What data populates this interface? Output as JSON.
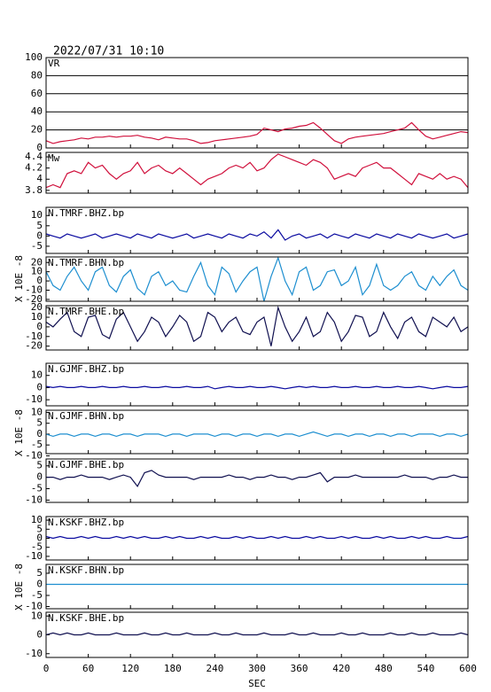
{
  "chart_data": {
    "type": "line",
    "title": "2022/07/31 10:10",
    "xlabel": "SEC",
    "xlim": [
      0,
      600
    ],
    "xticks": [
      0,
      60,
      120,
      180,
      240,
      300,
      360,
      420,
      480,
      540,
      600
    ],
    "y_labels": [
      "X 10E -8",
      "X 10E -8",
      "X 10E -8"
    ],
    "x": [
      0,
      10,
      20,
      30,
      40,
      50,
      60,
      70,
      80,
      90,
      100,
      110,
      120,
      130,
      140,
      150,
      160,
      170,
      180,
      190,
      200,
      210,
      220,
      230,
      240,
      250,
      260,
      270,
      280,
      290,
      300,
      310,
      320,
      330,
      340,
      350,
      360,
      370,
      380,
      390,
      400,
      410,
      420,
      430,
      440,
      450,
      460,
      470,
      480,
      490,
      500,
      510,
      520,
      530,
      540,
      550,
      560,
      570,
      580,
      590,
      600
    ],
    "panels": [
      {
        "name": "VR",
        "color": "#d0103c",
        "grid": true,
        "ylim": [
          0,
          100
        ],
        "yticks": [
          0,
          20,
          40,
          60,
          80,
          100
        ],
        "values": [
          8,
          5,
          7,
          8,
          9,
          11,
          10,
          12,
          12,
          13,
          12,
          13,
          13,
          14,
          12,
          11,
          9,
          12,
          11,
          10,
          10,
          8,
          5,
          6,
          8,
          9,
          10,
          11,
          12,
          13,
          15,
          22,
          20,
          18,
          21,
          22,
          24,
          25,
          28,
          22,
          15,
          8,
          5,
          10,
          12,
          13,
          14,
          15,
          16,
          18,
          20,
          22,
          28,
          20,
          13,
          10,
          12,
          14,
          16,
          18,
          17
        ]
      },
      {
        "name": "Mw",
        "color": "#d0103c",
        "grid": false,
        "ylim": [
          3.75,
          4.48
        ],
        "yticks": [
          3.8,
          4.0,
          4.2,
          4.4
        ],
        "values": [
          3.85,
          3.9,
          3.85,
          4.1,
          4.15,
          4.1,
          4.3,
          4.2,
          4.25,
          4.1,
          4.0,
          4.1,
          4.15,
          4.3,
          4.1,
          4.2,
          4.25,
          4.15,
          4.1,
          4.2,
          4.1,
          4.0,
          3.9,
          4.0,
          4.05,
          4.1,
          4.2,
          4.25,
          4.2,
          4.3,
          4.15,
          4.2,
          4.35,
          4.45,
          4.4,
          4.35,
          4.3,
          4.25,
          4.35,
          4.3,
          4.2,
          4.0,
          4.05,
          4.1,
          4.05,
          4.2,
          4.25,
          4.3,
          4.2,
          4.2,
          4.1,
          4.0,
          3.9,
          4.1,
          4.05,
          4.0,
          4.1,
          4.0,
          4.05,
          4.0,
          3.85
        ]
      },
      {
        "name": "N.TMRF.BHZ.bp",
        "color": "#0a0aa0",
        "grid": false,
        "ylim": [
          -8.5,
          14
        ],
        "yticks": [
          -5,
          0,
          5,
          10
        ],
        "values": [
          1,
          0,
          -1,
          1,
          0,
          -1,
          0,
          1,
          -1,
          0,
          1,
          0,
          -1,
          1,
          0,
          -1,
          1,
          0,
          -1,
          0,
          1,
          -1,
          0,
          1,
          0,
          -1,
          1,
          0,
          -1,
          1,
          0,
          2,
          -1,
          3,
          -2,
          0,
          1,
          -1,
          0,
          1,
          -1,
          1,
          0,
          -1,
          1,
          0,
          -1,
          1,
          0,
          -1,
          1,
          0,
          -1,
          1,
          0,
          -1,
          0,
          1,
          -1,
          0,
          1
        ]
      },
      {
        "name": "N.TMRF.BHN.bp",
        "color": "#1e8fd0",
        "grid": false,
        "ylim": [
          -22,
          26
        ],
        "yticks": [
          -20,
          -10,
          0,
          10,
          20
        ],
        "values": [
          10,
          -5,
          -10,
          5,
          15,
          0,
          -10,
          10,
          15,
          -5,
          -12,
          5,
          12,
          -8,
          -15,
          5,
          10,
          -5,
          0,
          -10,
          -12,
          5,
          20,
          -5,
          -15,
          15,
          8,
          -12,
          0,
          10,
          15,
          -22,
          5,
          25,
          0,
          -15,
          10,
          15,
          -10,
          -5,
          10,
          12,
          -5,
          0,
          15,
          -15,
          -5,
          18,
          -5,
          -10,
          -5,
          5,
          10,
          -5,
          -10,
          5,
          -5,
          5,
          12,
          -5,
          -10
        ]
      },
      {
        "name": "N.TMRF.BHE.bp",
        "color": "#101050",
        "grid": false,
        "ylim": [
          -24,
          22
        ],
        "yticks": [
          -20,
          -10,
          0,
          10,
          20
        ],
        "values": [
          5,
          0,
          8,
          15,
          -5,
          -10,
          10,
          12,
          -8,
          -12,
          8,
          15,
          0,
          -15,
          -5,
          10,
          5,
          -10,
          0,
          12,
          5,
          -15,
          -10,
          15,
          10,
          -5,
          5,
          10,
          -5,
          -8,
          5,
          10,
          -20,
          20,
          0,
          -15,
          -5,
          10,
          -10,
          -5,
          15,
          5,
          -15,
          -5,
          12,
          10,
          -10,
          -5,
          15,
          0,
          -12,
          5,
          10,
          -5,
          -10,
          10,
          5,
          0,
          10,
          -5,
          0
        ]
      },
      {
        "name": "N.GJMF.BHZ.bp",
        "color": "#0a0aa0",
        "grid": false,
        "ylim": [
          -15,
          20
        ],
        "yticks": [
          -10,
          0,
          10
        ],
        "values": [
          1,
          0,
          1,
          0,
          0,
          1,
          0,
          0,
          1,
          0,
          0,
          1,
          0,
          0,
          1,
          0,
          0,
          1,
          0,
          0,
          1,
          0,
          0,
          1,
          -1,
          0,
          1,
          0,
          0,
          1,
          0,
          0,
          1,
          0,
          -1,
          0,
          1,
          0,
          1,
          0,
          0,
          1,
          0,
          0,
          1,
          0,
          0,
          1,
          0,
          0,
          1,
          0,
          0,
          1,
          0,
          -1,
          0,
          1,
          0,
          0,
          1
        ]
      },
      {
        "name": "N.GJMF.BHN.bp",
        "color": "#1e8fd0",
        "grid": false,
        "ylim": [
          -9,
          11
        ],
        "yticks": [
          -10,
          -5,
          0,
          5,
          10
        ],
        "values": [
          0,
          -1,
          0,
          0,
          -1,
          0,
          0,
          -1,
          0,
          0,
          -1,
          0,
          0,
          -1,
          0,
          0,
          0,
          -1,
          0,
          0,
          -1,
          0,
          0,
          0,
          -1,
          0,
          0,
          -1,
          0,
          0,
          -1,
          0,
          0,
          -1,
          0,
          0,
          -1,
          0,
          1,
          0,
          -1,
          0,
          0,
          -1,
          0,
          0,
          -1,
          0,
          0,
          -1,
          0,
          0,
          -1,
          0,
          0,
          0,
          -1,
          0,
          0,
          -1,
          0
        ]
      },
      {
        "name": "N.GJMF.BHE.bp",
        "color": "#101050",
        "grid": false,
        "ylim": [
          -11,
          8
        ],
        "yticks": [
          -10,
          -5,
          0,
          5
        ],
        "values": [
          0,
          0,
          -1,
          0,
          0,
          1,
          0,
          0,
          0,
          -1,
          0,
          1,
          0,
          -4,
          2,
          3,
          1,
          0,
          0,
          0,
          0,
          -1,
          0,
          0,
          0,
          0,
          1,
          0,
          0,
          -1,
          0,
          0,
          1,
          0,
          0,
          -1,
          0,
          0,
          1,
          2,
          -2,
          0,
          0,
          0,
          1,
          0,
          0,
          0,
          0,
          0,
          0,
          1,
          0,
          0,
          0,
          -1,
          0,
          0,
          1,
          0,
          0
        ]
      },
      {
        "name": "N.KSKF.BHZ.bp",
        "color": "#0a0aa0",
        "grid": false,
        "ylim": [
          -12,
          12
        ],
        "yticks": [
          -10,
          -5,
          0,
          5,
          10
        ],
        "values": [
          1,
          0,
          1,
          0,
          0,
          1,
          0,
          1,
          0,
          0,
          1,
          0,
          1,
          0,
          1,
          0,
          0,
          1,
          0,
          1,
          0,
          0,
          1,
          0,
          1,
          0,
          0,
          1,
          0,
          1,
          0,
          0,
          1,
          0,
          1,
          0,
          0,
          1,
          0,
          1,
          0,
          0,
          1,
          0,
          1,
          0,
          0,
          1,
          0,
          1,
          0,
          0,
          1,
          0,
          1,
          0,
          0,
          1,
          0,
          0,
          1
        ]
      },
      {
        "name": "N.KSKF.BHN.bp",
        "color": "#1e8fd0",
        "grid": false,
        "ylim": [
          -11,
          9
        ],
        "yticks": [
          -10,
          -5,
          0,
          5
        ],
        "values": [
          0,
          0,
          0,
          0,
          0,
          0,
          0,
          0,
          0,
          0,
          0,
          0,
          0,
          0,
          0,
          0,
          0,
          0,
          0,
          0,
          0,
          0,
          0,
          0,
          0,
          0,
          0,
          0,
          0,
          0,
          0,
          0,
          0,
          0,
          0,
          0,
          0,
          0,
          0,
          0,
          0,
          0,
          0,
          0,
          0,
          0,
          0,
          0,
          0,
          0,
          0,
          0,
          0,
          0,
          0,
          0,
          0,
          0,
          0,
          0,
          0
        ]
      },
      {
        "name": "N.KSKF.BHE.bp",
        "color": "#101050",
        "grid": false,
        "ylim": [
          -12,
          12
        ],
        "yticks": [
          -10,
          0,
          10
        ],
        "values": [
          0,
          1,
          0,
          1,
          0,
          0,
          1,
          0,
          0,
          0,
          1,
          0,
          0,
          0,
          1,
          0,
          0,
          1,
          0,
          0,
          1,
          0,
          0,
          0,
          1,
          0,
          0,
          1,
          0,
          0,
          0,
          1,
          0,
          0,
          0,
          1,
          0,
          0,
          1,
          0,
          0,
          0,
          1,
          0,
          0,
          1,
          0,
          0,
          0,
          1,
          0,
          0,
          1,
          0,
          0,
          1,
          0,
          0,
          0,
          1,
          0
        ]
      }
    ]
  }
}
